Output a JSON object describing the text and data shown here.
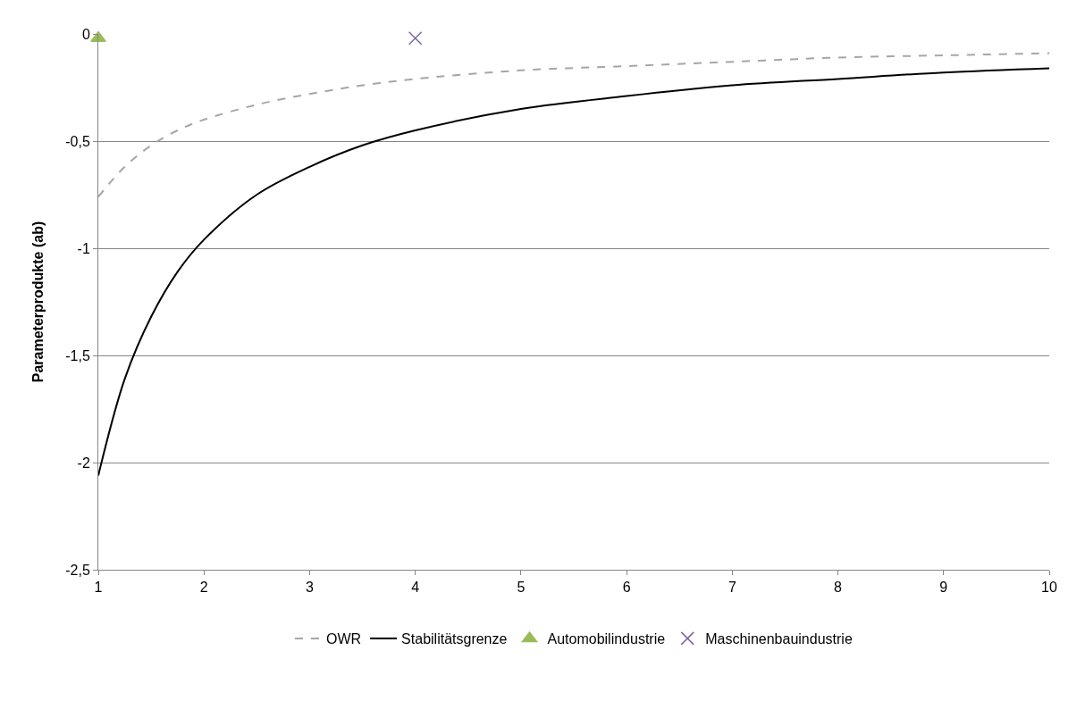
{
  "chart_data": {
    "type": "line",
    "ylabel": "Parameterprodukte (ab)",
    "xlim": [
      1,
      10
    ],
    "xticks": [
      1,
      2,
      3,
      4,
      5,
      6,
      7,
      8,
      9,
      10
    ],
    "ylim": [
      -2.5,
      0
    ],
    "yticks": [
      {
        "value": 0,
        "label": "0"
      },
      {
        "value": -0.5,
        "label": "-0,5"
      },
      {
        "value": -1,
        "label": "-1"
      },
      {
        "value": -1.5,
        "label": "-1,5"
      },
      {
        "value": -2,
        "label": "-2"
      },
      {
        "value": -2.5,
        "label": "-2,5"
      }
    ],
    "grid": "y",
    "legend": "bottom",
    "series": [
      {
        "name": "OWR",
        "color": "#a6a6a6",
        "line_style": "dashed",
        "marker": "none",
        "x": [
          1,
          1.25,
          1.5,
          1.75,
          2,
          2.5,
          3,
          3.5,
          4,
          5,
          6,
          7,
          8,
          9,
          10
        ],
        "values": [
          -0.76,
          -0.62,
          -0.52,
          -0.45,
          -0.4,
          -0.33,
          -0.28,
          -0.24,
          -0.21,
          -0.17,
          -0.15,
          -0.13,
          -0.11,
          -0.1,
          -0.09
        ]
      },
      {
        "name": "Stabilitätsgrenze",
        "color": "#000000",
        "line_style": "solid",
        "marker": "none",
        "x": [
          1,
          1.25,
          1.5,
          1.75,
          2,
          2.5,
          3,
          3.5,
          4,
          5,
          6,
          7,
          8,
          9,
          10
        ],
        "values": [
          -2.06,
          -1.61,
          -1.32,
          -1.11,
          -0.96,
          -0.75,
          -0.62,
          -0.52,
          -0.45,
          -0.35,
          -0.29,
          -0.24,
          -0.21,
          -0.18,
          -0.16
        ]
      },
      {
        "name": "Automobilindustrie",
        "type": "scatter",
        "color": "#9bbb59",
        "marker": "triangle",
        "x": [
          1
        ],
        "values": [
          -0.02
        ]
      },
      {
        "name": "Maschinenbauindustrie",
        "type": "scatter",
        "color": "#8064a2",
        "marker": "cross",
        "x": [
          4
        ],
        "values": [
          -0.02
        ]
      }
    ]
  }
}
